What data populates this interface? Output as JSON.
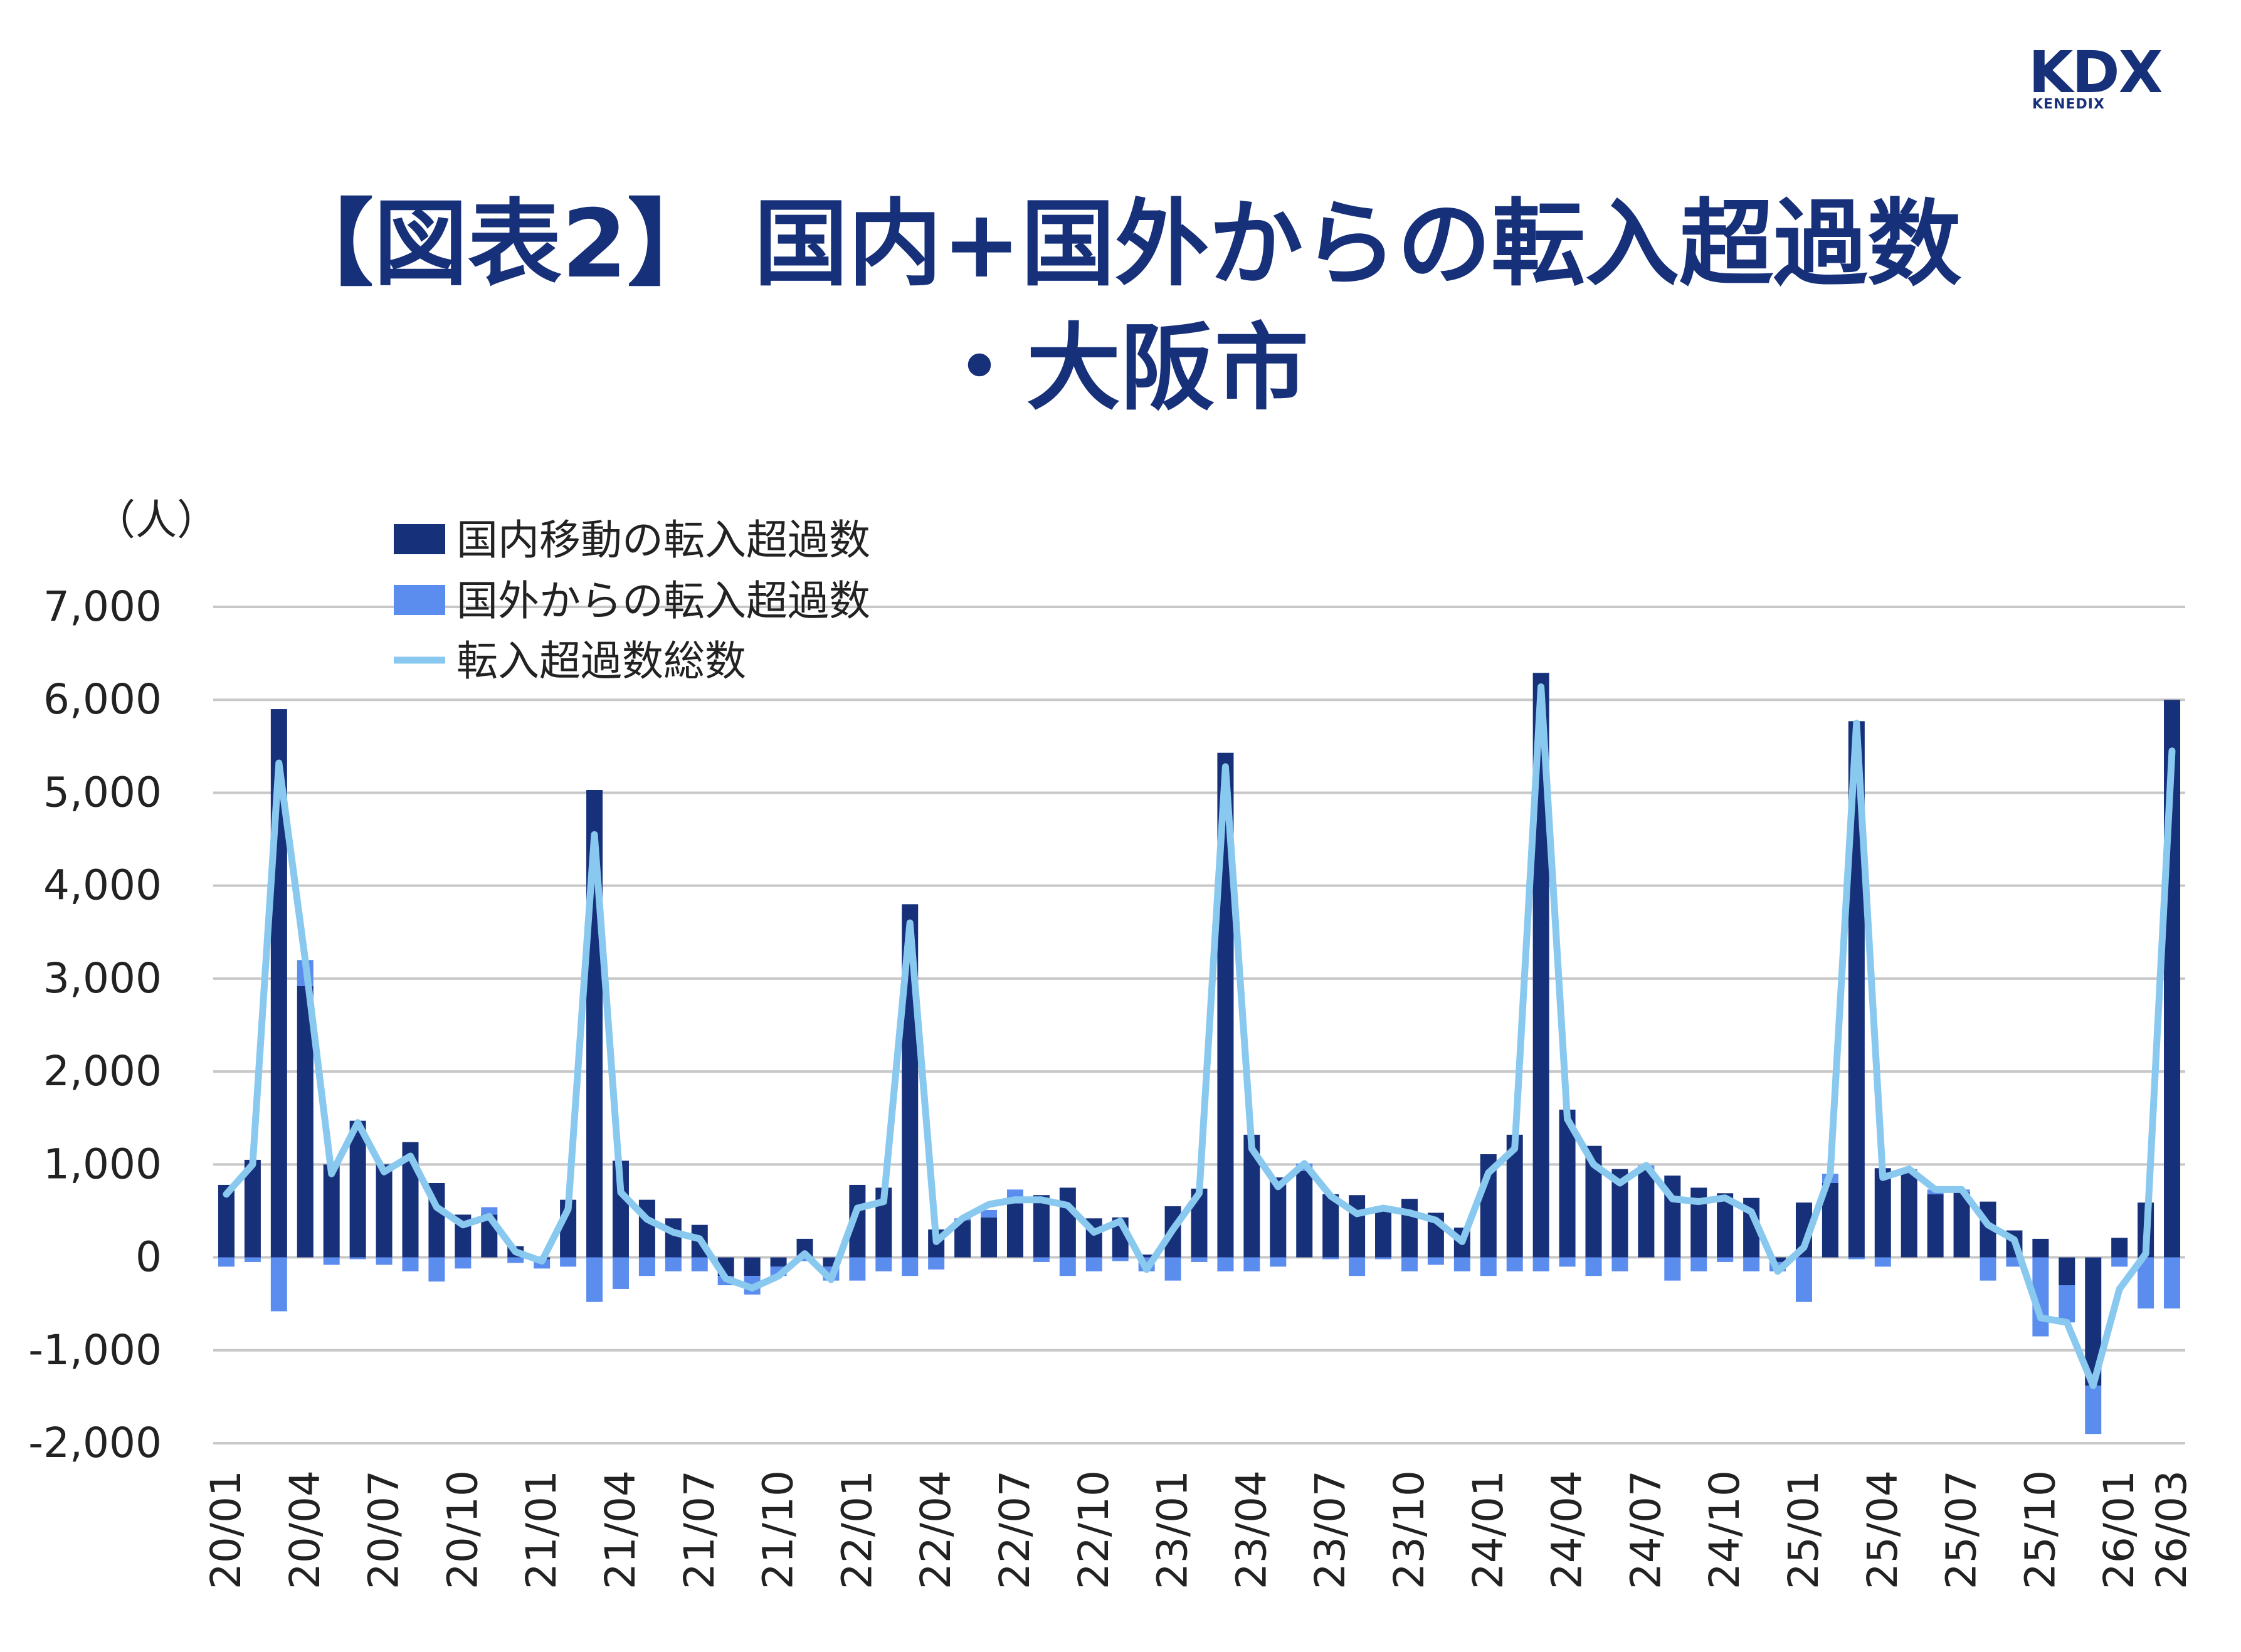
{
  "logo": {
    "main": "KDX",
    "sub": "KENEDIX"
  },
  "title": {
    "line1": "【図表2】 国内+国外からの転入超過数",
    "line2": "・大阪市"
  },
  "colors": {
    "domestic": "#17307a",
    "foreign": "#5b8def",
    "total": "#89c9ef",
    "grid": "#c8c8c8",
    "title": "#17307a"
  },
  "chart_data": {
    "type": "bar",
    "stacked": true,
    "unit": "（人）",
    "ylim": [
      -2000,
      7000
    ],
    "yticks": [
      7000,
      6000,
      5000,
      4000,
      3000,
      2000,
      1000,
      0,
      -1000,
      -2000
    ],
    "ytick_labels": [
      "7,000",
      "6,000",
      "5,000",
      "4,000",
      "3,000",
      "2,000",
      "1,000",
      "0",
      "-1,000",
      "-2,000"
    ],
    "grid": true,
    "legend_position": "top-left",
    "x": [
      "20/01",
      "20/02",
      "20/03",
      "20/04",
      "20/05",
      "20/06",
      "20/07",
      "20/08",
      "20/09",
      "20/10",
      "20/11",
      "20/12",
      "21/01",
      "21/02",
      "21/03",
      "21/04",
      "21/05",
      "21/06",
      "21/07",
      "21/08",
      "21/09",
      "21/10",
      "21/11",
      "21/12",
      "22/01",
      "22/02",
      "22/03",
      "22/04",
      "22/05",
      "22/06",
      "22/07",
      "22/08",
      "22/09",
      "22/10",
      "22/11",
      "22/12",
      "23/01",
      "23/02",
      "23/03",
      "23/04",
      "23/05",
      "23/06",
      "23/07",
      "23/08",
      "23/09",
      "23/10",
      "23/11",
      "23/12",
      "24/01",
      "24/02",
      "24/03",
      "24/04",
      "24/05",
      "24/06",
      "24/07",
      "24/08",
      "24/09",
      "24/10",
      "24/11",
      "24/12",
      "25/01",
      "25/02",
      "25/03",
      "25/04",
      "25/05",
      "25/06",
      "25/07",
      "25/08",
      "25/09",
      "25/10",
      "25/11",
      "25/12",
      "26/01",
      "26/02",
      "26/03"
    ],
    "xtick_labels": [
      "20/01",
      "20/04",
      "20/07",
      "20/10",
      "21/01",
      "21/04",
      "21/07",
      "21/10",
      "22/01",
      "22/04",
      "22/07",
      "22/10",
      "23/01",
      "23/04",
      "23/07",
      "23/10",
      "24/01",
      "24/04",
      "24/07",
      "24/10",
      "25/01",
      "25/04",
      "25/07",
      "25/10",
      "26/01",
      "26/03"
    ],
    "series": [
      {
        "name": "国内移動の転入超過数",
        "kind": "bar",
        "values": [
          780,
          1050,
          5900,
          2920,
          1000,
          1470,
          1000,
          1240,
          800,
          460,
          460,
          120,
          -20,
          620,
          5030,
          1040,
          620,
          420,
          350,
          -200,
          -200,
          -100,
          200,
          -100,
          780,
          750,
          3800,
          300,
          400,
          430,
          580,
          670,
          750,
          420,
          430,
          30,
          550,
          740,
          5430,
          1320,
          860,
          930,
          680,
          670,
          550,
          630,
          480,
          320,
          1110,
          1320,
          6290,
          1590,
          1200,
          950,
          940,
          880,
          750,
          690,
          640,
          -50,
          590,
          800,
          5770,
          960,
          920,
          680,
          700,
          600,
          290,
          200,
          -300,
          -1380,
          210,
          590,
          6000
        ]
      },
      {
        "name": "国外からの転入超過数",
        "kind": "bar",
        "values": [
          -100,
          -50,
          -580,
          280,
          -80,
          -20,
          -80,
          -150,
          -260,
          -120,
          80,
          -60,
          -100,
          -100,
          -480,
          -340,
          -200,
          -150,
          -150,
          -100,
          -200,
          -100,
          -40,
          -150,
          -250,
          -150,
          -200,
          -130,
          20,
          80,
          150,
          -50,
          -200,
          -150,
          -40,
          -150,
          -250,
          -50,
          -150,
          -150,
          -100,
          80,
          -20,
          -200,
          -20,
          -150,
          -80,
          -150,
          -200,
          -150,
          -150,
          -100,
          -200,
          -150,
          50,
          -250,
          -150,
          -50,
          -150,
          -100,
          -480,
          100,
          -20,
          -100,
          30,
          50,
          30,
          -250,
          -100,
          -850,
          -400,
          -520,
          -100,
          -550,
          -550
        ]
      },
      {
        "name": "転入超過数総数",
        "kind": "line",
        "values": [
          680,
          1000,
          5320,
          3200,
          900,
          1450,
          920,
          1090,
          540,
          350,
          440,
          60,
          -40,
          520,
          4550,
          700,
          410,
          270,
          200,
          -230,
          -330,
          -200,
          40,
          -240,
          530,
          600,
          3600,
          170,
          420,
          570,
          620,
          620,
          560,
          270,
          390,
          -130,
          300,
          690,
          5280,
          1170,
          760,
          1010,
          660,
          470,
          530,
          480,
          400,
          170,
          910,
          1170,
          6140,
          1490,
          1000,
          800,
          990,
          630,
          600,
          640,
          490,
          -150,
          110,
          900,
          5750,
          860,
          950,
          730,
          730,
          350,
          190,
          -650,
          -700,
          -1380,
          -340,
          40,
          5450
        ]
      }
    ]
  }
}
